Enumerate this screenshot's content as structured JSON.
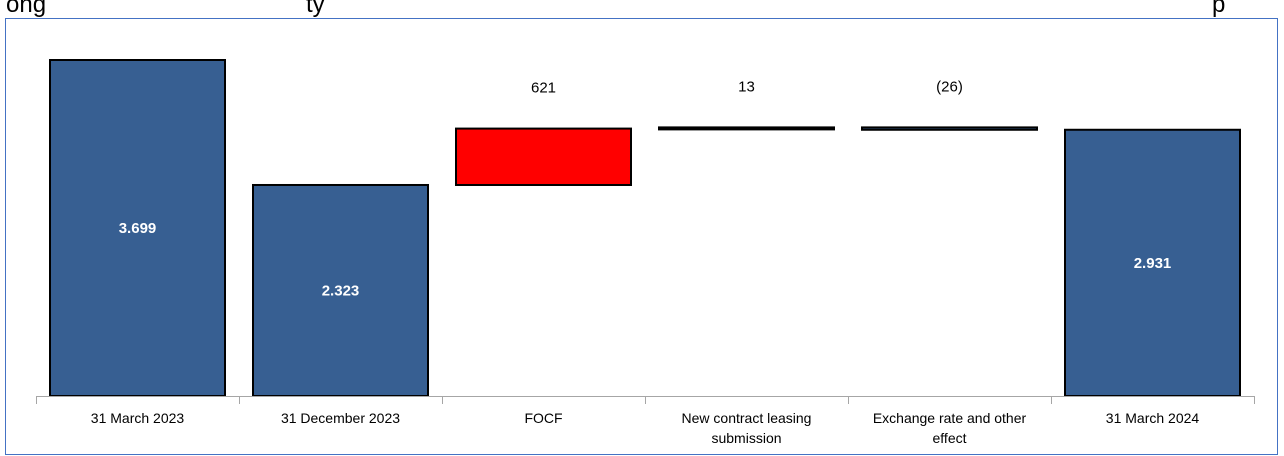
{
  "title": "ong  ...  ty  ...  p",
  "title_fragments": [
    "ong",
    "ty",
    "p"
  ],
  "colors": {
    "total_bar": "#375F92",
    "increase_bar": "#FF0000",
    "bar_outline": "#000000",
    "border": "#4472C4",
    "axis": "#A6A6A6"
  },
  "chart_data": {
    "type": "bar",
    "variant": "waterfall",
    "categories": [
      "31 March 2023",
      "31 December 2023",
      "FOCF",
      "New contract leasing submission",
      "Exchange rate and other effect",
      "31 March 2024"
    ],
    "category_lines": [
      [
        "31 March 2023"
      ],
      [
        "31 December 2023"
      ],
      [
        "FOCF"
      ],
      [
        "New contract leasing",
        "submission"
      ],
      [
        "Exchange rate and other",
        "effect"
      ],
      [
        "31 March 2024"
      ]
    ],
    "bars": [
      {
        "kind": "total",
        "value": 3699,
        "label": "3.699"
      },
      {
        "kind": "total",
        "value": 2323,
        "label": "2.323"
      },
      {
        "kind": "delta",
        "value": 621,
        "label": "621"
      },
      {
        "kind": "delta",
        "value": 13,
        "label": "13"
      },
      {
        "kind": "delta",
        "value": -26,
        "label": "(26)"
      },
      {
        "kind": "total",
        "value": 2931,
        "label": "2.931"
      }
    ],
    "xlabel": "",
    "ylabel": "",
    "ylim": [
      0,
      4000
    ],
    "grid": false,
    "legend": "none"
  }
}
